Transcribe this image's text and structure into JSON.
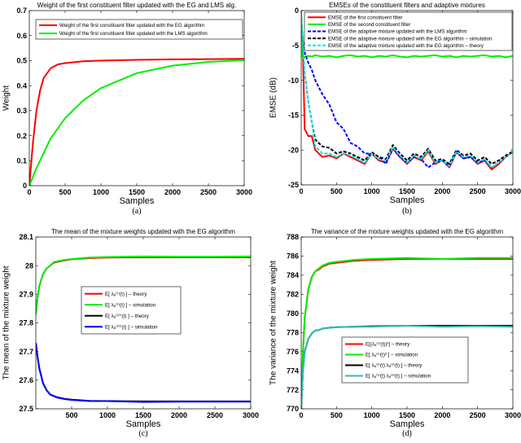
{
  "chart_data": [
    {
      "id": "a",
      "type": "line",
      "title": "Weight of the first constituent filter updated with the EG and LMS alg.",
      "xlabel": "Samples",
      "ylabel": "Weight",
      "caption": "(a)",
      "xlim": [
        0,
        3000
      ],
      "ylim": [
        0,
        0.7
      ],
      "xticks": [
        0,
        500,
        1000,
        1500,
        2000,
        2500,
        3000
      ],
      "yticks": [
        0,
        0.1,
        0.2,
        0.3,
        0.4,
        0.5,
        0.6,
        0.7
      ],
      "legend_position": "top-right",
      "x": [
        0,
        50,
        100,
        150,
        200,
        300,
        400,
        500,
        750,
        1000,
        1500,
        2000,
        2500,
        3000
      ],
      "series": [
        {
          "name": "Weight of the first constituent filter updated with the EG algorithm",
          "color": "#ff0000",
          "dash": false,
          "values": [
            0,
            0.17,
            0.3,
            0.38,
            0.43,
            0.47,
            0.485,
            0.49,
            0.497,
            0.5,
            0.503,
            0.505,
            0.506,
            0.507
          ]
        },
        {
          "name": "Weight of the first constituent filter updated with the LMS algorithm",
          "color": "#00ee00",
          "dash": false,
          "values": [
            0,
            0.035,
            0.07,
            0.1,
            0.13,
            0.19,
            0.23,
            0.27,
            0.34,
            0.39,
            0.45,
            0.48,
            0.495,
            0.502
          ]
        }
      ]
    },
    {
      "id": "b",
      "type": "line",
      "title": "EMSEs of the constituent filters and adaptive mixtures",
      "xlabel": "Samples",
      "ylabel": "EMSE (dB)",
      "caption": "(b)",
      "xlim": [
        0,
        3000
      ],
      "ylim": [
        -25,
        0
      ],
      "xticks": [
        0,
        500,
        1000,
        1500,
        2000,
        2500,
        3000
      ],
      "yticks": [
        -25,
        -20,
        -15,
        -10,
        -5,
        0
      ],
      "legend_position": "top-right",
      "x": [
        0,
        20,
        50,
        100,
        150,
        200,
        300,
        400,
        500,
        600,
        700,
        800,
        900,
        1000,
        1100,
        1200,
        1300,
        1400,
        1500,
        1600,
        1700,
        1800,
        1900,
        2000,
        2100,
        2200,
        2300,
        2400,
        2500,
        2600,
        2700,
        2800,
        2900,
        3000
      ],
      "series": [
        {
          "name": "EMSE of the first constituent filter",
          "color": "#ff0000",
          "dash": false,
          "values": [
            -1,
            -4,
            -17,
            -18,
            -18,
            -20,
            -21,
            -20.8,
            -21.2,
            -20.5,
            -21,
            -21.5,
            -22,
            -20.5,
            -21.5,
            -21.8,
            -19.8,
            -21,
            -22,
            -21,
            -21.5,
            -20.2,
            -22,
            -21.5,
            -22.5,
            -20.3,
            -21.2,
            -21,
            -22,
            -21.5,
            -22.8,
            -22,
            -21,
            -20.3
          ]
        },
        {
          "name": "EMSE of the second constituent filter",
          "color": "#00ee00",
          "dash": false,
          "values": [
            0,
            -6.8,
            -6.6,
            -6.5,
            -6.6,
            -6.4,
            -6.6,
            -6.5,
            -6.7,
            -6.5,
            -6.4,
            -6.6,
            -6.5,
            -6.7,
            -6.5,
            -6.6,
            -6.4,
            -6.6,
            -6.7,
            -6.5,
            -6.6,
            -6.5,
            -6.4,
            -6.6,
            -6.5,
            -6.7,
            -6.5,
            -6.6,
            -6.5,
            -6.4,
            -6.6,
            -6.5,
            -6.7,
            -6.5
          ]
        },
        {
          "name": "EMSE of the adaptive mixture updated with the LMS algorithm",
          "color": "#0000ff",
          "dash": true,
          "values": [
            -1,
            -4,
            -6,
            -7.5,
            -8.5,
            -10,
            -12,
            -13.5,
            -16,
            -17,
            -19,
            -19.5,
            -20.5,
            -20.5,
            -21,
            -22,
            -19.8,
            -21,
            -21.8,
            -21,
            -21.3,
            -22.5,
            -21.8,
            -21.5,
            -22.3,
            -20.3,
            -21.2,
            -21,
            -21.8,
            -21.5,
            -22.5,
            -21.8,
            -21,
            -20.3
          ]
        },
        {
          "name": "EMSE of the adaptive mixture updated with the EG algorithm – simulation",
          "color": "#000000",
          "dash": true,
          "values": [
            -1,
            -4,
            -9,
            -13,
            -16,
            -18.5,
            -19.5,
            -19.7,
            -20.5,
            -20.2,
            -20.5,
            -21,
            -21.5,
            -20.3,
            -21,
            -21.3,
            -19.3,
            -20.5,
            -21.5,
            -20.5,
            -21,
            -19.8,
            -21.5,
            -21.3,
            -22,
            -20,
            -20.8,
            -20.5,
            -21.5,
            -21,
            -22,
            -21.5,
            -20.8,
            -20.2
          ]
        },
        {
          "name": "EMSE of the adaptive mixture updated with the EG algorithm – theory",
          "color": "#00e5ee",
          "dash": true,
          "values": [
            -1,
            -4,
            -9,
            -13,
            -16,
            -19.5,
            -20.5,
            -20.5,
            -21,
            -20.5,
            -20.8,
            -21.3,
            -21.8,
            -20.5,
            -21.3,
            -21.6,
            -19.6,
            -20.8,
            -21.8,
            -20.8,
            -21.3,
            -20,
            -21.8,
            -21.5,
            -22.3,
            -20.2,
            -21,
            -20.8,
            -21.8,
            -21.3,
            -22.5,
            -21.8,
            -21,
            -20.3
          ]
        }
      ]
    },
    {
      "id": "c",
      "type": "line",
      "title": "The mean of the mixture weights updated with the EG algorithm",
      "xlabel": "Samples",
      "ylabel": "The mean of the mixture weight",
      "caption": "(c)",
      "xlim": [
        0,
        3000
      ],
      "ylim": [
        27.5,
        28.1
      ],
      "xticks": [
        500,
        1000,
        1500,
        2000,
        2500,
        3000
      ],
      "yticks": [
        27.5,
        27.6,
        27.7,
        27.8,
        27.9,
        28,
        28.1
      ],
      "legend_position": "center-left",
      "x": [
        0,
        25,
        50,
        100,
        150,
        200,
        250,
        300,
        400,
        500,
        750,
        1000,
        1500,
        2000,
        2500,
        3000
      ],
      "series": [
        {
          "name": "E[ λₐ⁽¹⁾(t) ] – theory",
          "color": "#ff0000",
          "dash": false,
          "values": [
            27.83,
            27.89,
            27.93,
            27.97,
            27.99,
            28.0,
            28.01,
            28.013,
            28.018,
            28.022,
            28.026,
            28.028,
            28.029,
            28.029,
            28.029,
            28.029
          ]
        },
        {
          "name": "E[ λₐ⁽¹⁾(t) ] – simulation",
          "color": "#00ee00",
          "dash": false,
          "values": [
            27.83,
            27.89,
            27.93,
            27.97,
            27.99,
            28.0,
            28.012,
            28.015,
            28.02,
            28.023,
            28.028,
            28.03,
            28.032,
            28.031,
            28.031,
            28.032
          ]
        },
        {
          "name": "E[ λₐ⁽¹⁰⁾(t) ] – theory",
          "color": "#000000",
          "dash": false,
          "values": [
            27.73,
            27.68,
            27.64,
            27.59,
            27.565,
            27.55,
            27.545,
            27.54,
            27.535,
            27.532,
            27.528,
            27.527,
            27.526,
            27.526,
            27.526,
            27.526
          ]
        },
        {
          "name": "E[ λₐ⁽¹⁰⁾(t) ] – simulation",
          "color": "#0000ff",
          "dash": false,
          "values": [
            27.73,
            27.68,
            27.64,
            27.59,
            27.565,
            27.55,
            27.544,
            27.539,
            27.534,
            27.531,
            27.527,
            27.527,
            27.524,
            27.525,
            27.525,
            27.525
          ]
        }
      ]
    },
    {
      "id": "d",
      "type": "line",
      "title": "The variance of the mixture weights updated with the EG algorithm",
      "xlabel": "Samples",
      "ylabel": "The variance of the mixture weight",
      "caption": "(d)",
      "xlim": [
        0,
        3000
      ],
      "ylim": [
        770,
        788
      ],
      "xticks": [
        0,
        500,
        1000,
        1500,
        2000,
        2500,
        3000
      ],
      "yticks": [
        770,
        772,
        774,
        776,
        778,
        780,
        782,
        784,
        786,
        788
      ],
      "legend_position": "bottom-center",
      "x": [
        0,
        25,
        50,
        100,
        150,
        200,
        250,
        300,
        400,
        500,
        750,
        1000,
        1500,
        2000,
        2500,
        3000
      ],
      "series": [
        {
          "name": "E[(λₐ⁽¹⁾(t))²] – theory",
          "color": "#ff0000",
          "dash": false,
          "values": [
            770,
            776,
            779.5,
            782.5,
            783.8,
            784.4,
            784.6,
            784.9,
            785.2,
            785.3,
            785.5,
            785.6,
            785.7,
            785.7,
            785.7,
            785.7
          ]
        },
        {
          "name": "E[ λₐ⁽¹⁾(t)² ] – simulation",
          "color": "#00ee00",
          "dash": false,
          "values": [
            770,
            776,
            779.5,
            782.5,
            783.8,
            784.4,
            784.7,
            785.0,
            785.3,
            785.4,
            785.6,
            785.7,
            785.8,
            785.7,
            785.8,
            785.8
          ]
        },
        {
          "name": "E[ λₐ⁽¹⁾(t) λₐ⁽²⁾(t) ] – theory",
          "color": "#000000",
          "dash": false,
          "values": [
            770,
            774,
            776,
            777.3,
            777.9,
            778.2,
            778.25,
            778.4,
            778.5,
            778.55,
            778.6,
            778.65,
            778.7,
            778.7,
            778.7,
            778.7
          ]
        },
        {
          "name": "E[ λₐ⁽¹⁾(t) λₐ⁽²⁾(t) ] – simulation",
          "color": "#33bbbb",
          "dash": false,
          "values": [
            770,
            774,
            776,
            777.3,
            777.9,
            778.2,
            778.25,
            778.4,
            778.5,
            778.55,
            778.6,
            778.6,
            778.7,
            778.6,
            778.65,
            778.6
          ]
        }
      ]
    }
  ]
}
